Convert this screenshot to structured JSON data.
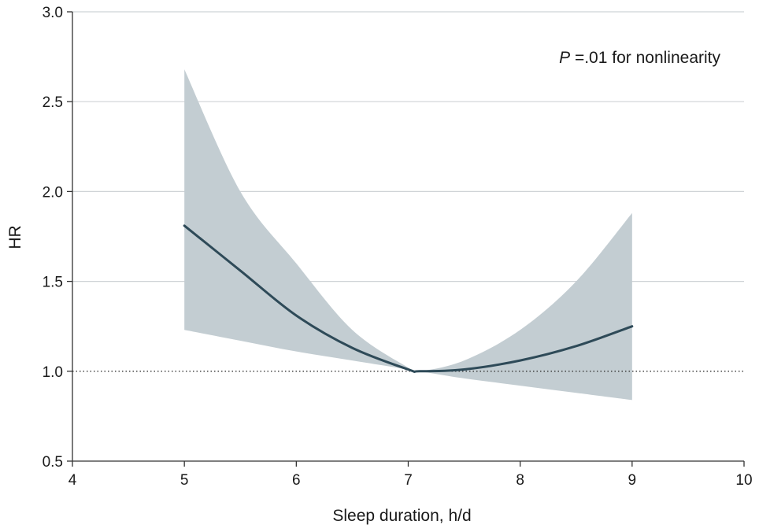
{
  "chart_data": {
    "type": "line",
    "title": "",
    "xlabel": "Sleep duration, h/d",
    "ylabel": "HR",
    "xlim": [
      4,
      10
    ],
    "ylim": [
      0.5,
      3.0
    ],
    "x_ticks": [
      "4",
      "5",
      "6",
      "7",
      "8",
      "9",
      "10"
    ],
    "y_ticks": [
      "0.5",
      "1.0",
      "1.5",
      "2.0",
      "2.5",
      "3.0"
    ],
    "grid": "horizontal",
    "reference_line": 1.0,
    "annotation": {
      "italic_part": "P",
      "rest": " =.01 for nonlinearity"
    },
    "series": [
      {
        "x": [
          5.0,
          5.5,
          6.0,
          6.5,
          7.0,
          7.1,
          7.5,
          8.0,
          8.5,
          9.0
        ],
        "y": [
          1.81,
          1.56,
          1.31,
          1.13,
          1.01,
          1.0,
          1.01,
          1.06,
          1.14,
          1.25
        ],
        "ci_lower": [
          1.23,
          1.17,
          1.11,
          1.06,
          1.01,
          1.0,
          0.96,
          0.92,
          0.88,
          0.84
        ],
        "ci_upper": [
          2.68,
          2.0,
          1.6,
          1.23,
          1.02,
          1.0,
          1.06,
          1.23,
          1.5,
          1.88
        ]
      }
    ],
    "colors": {
      "line": "#2e4a58",
      "band": "#c3cdd2",
      "grid": "#cfd3d6",
      "axis": "#333333",
      "reference": "#333333"
    }
  }
}
